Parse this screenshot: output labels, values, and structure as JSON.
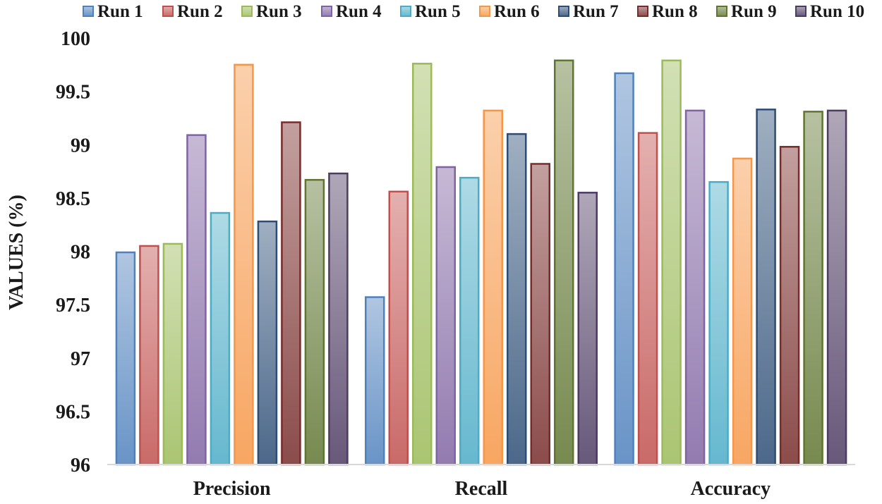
{
  "chart_data": {
    "type": "bar",
    "title": "",
    "xlabel": "",
    "ylabel": "VALUES (%)",
    "ylim": [
      96,
      100
    ],
    "yticks": [
      96,
      96.5,
      97,
      97.5,
      98,
      98.5,
      99,
      99.5,
      100
    ],
    "ytick_labels": [
      "96",
      "96.5",
      "97",
      "97.5",
      "98",
      "98.5",
      "99",
      "99.5",
      "100"
    ],
    "grid": false,
    "legend_position": "top",
    "categories": [
      "Precision",
      "Recall",
      "Accuracy"
    ],
    "series": [
      {
        "name": "Run 1",
        "color": "#4F81BD",
        "values": [
          97.99,
          97.57,
          99.67
        ]
      },
      {
        "name": "Run 2",
        "color": "#C0504D",
        "values": [
          98.05,
          98.56,
          99.11
        ]
      },
      {
        "name": "Run 3",
        "color": "#9BBB59",
        "values": [
          98.07,
          99.76,
          99.79
        ]
      },
      {
        "name": "Run 4",
        "color": "#8064A2",
        "values": [
          99.09,
          98.79,
          99.32
        ]
      },
      {
        "name": "Run 5",
        "color": "#4BACC6",
        "values": [
          98.36,
          98.69,
          98.65
        ]
      },
      {
        "name": "Run 6",
        "color": "#F79646",
        "values": [
          99.75,
          99.32,
          98.87
        ]
      },
      {
        "name": "Run 7",
        "color": "#2C4D75",
        "values": [
          98.28,
          99.1,
          99.33
        ]
      },
      {
        "name": "Run 8",
        "color": "#772C2A",
        "values": [
          99.21,
          98.82,
          98.98
        ]
      },
      {
        "name": "Run 9",
        "color": "#5F7530",
        "values": [
          98.67,
          99.79,
          99.31
        ]
      },
      {
        "name": "Run 10",
        "color": "#4D3B62",
        "values": [
          98.73,
          98.55,
          99.32
        ]
      }
    ]
  }
}
